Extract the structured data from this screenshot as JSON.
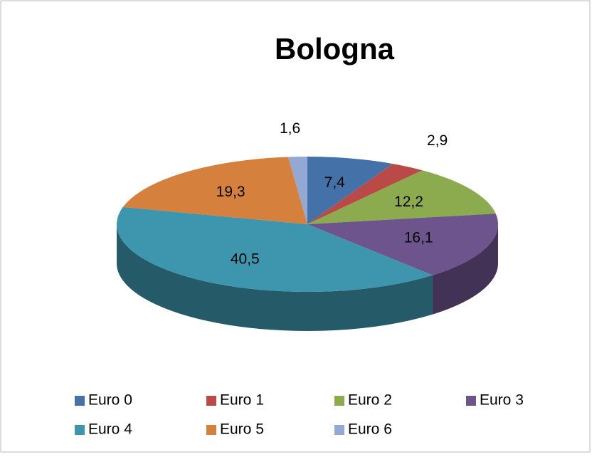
{
  "chart_data": {
    "type": "pie3d",
    "title": "Bologna",
    "categories": [
      "Euro 0",
      "Euro 1",
      "Euro 2",
      "Euro 3",
      "Euro 4",
      "Euro 5",
      "Euro 6"
    ],
    "values": [
      7.4,
      2.9,
      12.2,
      16.1,
      40.5,
      19.3,
      1.6
    ],
    "value_labels": [
      "7,4",
      "2,9",
      "12,2",
      "16,1",
      "40,5",
      "19,3",
      "1,6"
    ],
    "colors": [
      "#4472a8",
      "#b94a48",
      "#8cab4e",
      "#6e548d",
      "#3d96ae",
      "#d5803c",
      "#93a9d4"
    ],
    "legend": "bottom"
  }
}
